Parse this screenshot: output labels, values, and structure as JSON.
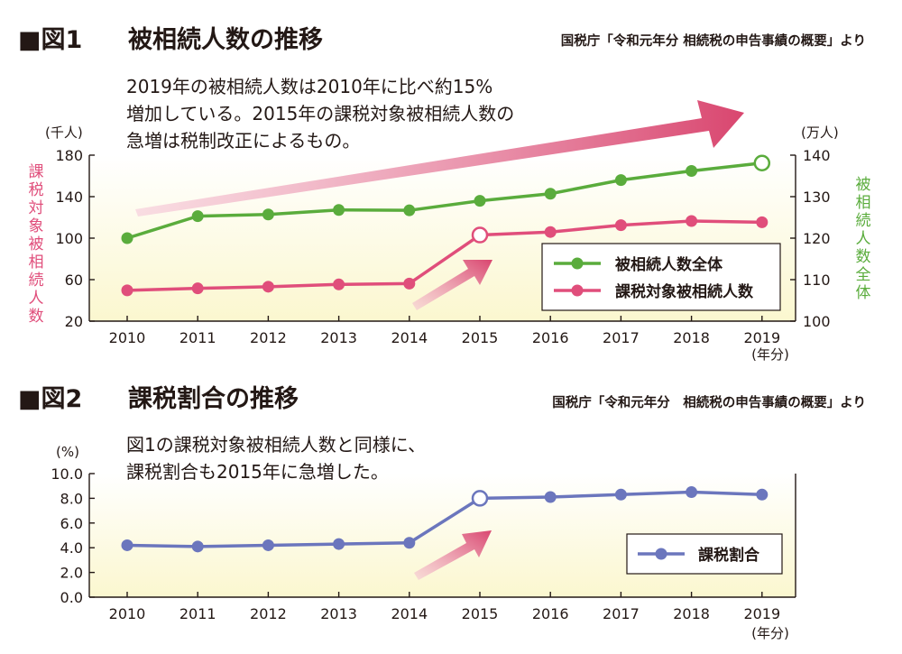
{
  "chart_data": [
    {
      "type": "line",
      "figure_label": "■図1",
      "title": "被相続人数の推移",
      "source": "国税庁「令和元年分 相続税の申告事績の概要」より",
      "annotation": [
        "2019年の被相続人数は2010年に比べ約15%",
        "増加している。2015年の課税対象被相続人数の",
        "急増は税制改正によるもの。"
      ],
      "categories": [
        "2010",
        "2011",
        "2012",
        "2013",
        "2014",
        "2015",
        "2016",
        "2017",
        "2018",
        "2019"
      ],
      "x_unit": "(年分)",
      "y_left": {
        "unit": "(千人)",
        "label": "課税対象被相続人数",
        "ticks": [
          20,
          60,
          100,
          140,
          180
        ],
        "range": [
          20,
          180
        ],
        "color": "#e04e7b"
      },
      "y_right": {
        "unit": "(万人)",
        "label": "被相続人数全体",
        "ticks": [
          100,
          110,
          120,
          130,
          140
        ],
        "range": [
          100,
          140
        ],
        "color": "#5aac3c"
      },
      "series": [
        {
          "name": "被相続人数全体",
          "axis": "right",
          "color": "#5aac3c",
          "values": [
            120.0,
            125.3,
            125.7,
            126.8,
            126.7,
            129.0,
            130.7,
            134.0,
            136.2,
            138.1
          ],
          "highlight_index": 9
        },
        {
          "name": "課税対象被相続人数",
          "axis": "left",
          "color": "#e04e7b",
          "values": [
            49.7,
            51.6,
            53.2,
            55.4,
            56.2,
            103.0,
            105.9,
            112.5,
            116.5,
            115.3
          ],
          "highlight_index": 5
        }
      ],
      "legend_position": "lower-right",
      "grid": false
    },
    {
      "type": "line",
      "figure_label": "■図2",
      "title": "課税割合の推移",
      "source": "国税庁「令和元年分　相続税の申告事績の概要」より",
      "annotation": [
        "図1の課税対象被相続人数と同様に、",
        "課税割合も2015年に急増した。"
      ],
      "categories": [
        "2010",
        "2011",
        "2012",
        "2013",
        "2014",
        "2015",
        "2016",
        "2017",
        "2018",
        "2019"
      ],
      "x_unit": "(年分)",
      "y_left": {
        "unit": "(%)",
        "ticks": [
          "0.0",
          "2.0",
          "4.0",
          "6.0",
          "8.0",
          "10.0"
        ],
        "range": [
          0,
          10
        ],
        "color": "#231815"
      },
      "series": [
        {
          "name": "課税割合",
          "axis": "left",
          "color": "#6b76bd",
          "values": [
            4.2,
            4.1,
            4.2,
            4.3,
            4.4,
            8.0,
            8.1,
            8.3,
            8.5,
            8.3
          ],
          "highlight_index": 5
        }
      ],
      "legend_position": "lower-right",
      "grid": false
    }
  ]
}
